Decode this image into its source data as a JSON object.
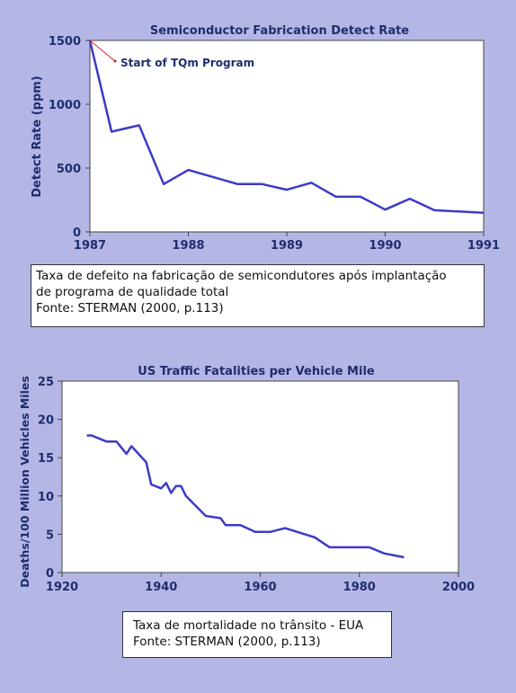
{
  "colors": {
    "background": "#b4b7e6",
    "plot_bg": "#ffffff",
    "line": "#3b3bc8",
    "text": "#1f2d6b",
    "annotation_arrow": "#e02020"
  },
  "caption1": {
    "line1": "Taxa de defeito na fabricação de semicondutores após implantação",
    "line2": "de programa de qualidade total",
    "line3": "Fonte: STERMAN (2000, p.113)"
  },
  "caption2": {
    "line1": "Taxa de mortalidade no trânsito - EUA",
    "line2": "Fonte: STERMAN (2000, p.113)"
  },
  "chart_data": [
    {
      "type": "line",
      "title": "Semiconductor Fabrication Detect Rate",
      "xlabel": "",
      "ylabel": "Detect Rate (ppm)",
      "xlim": [
        1987,
        1991
      ],
      "ylim": [
        0,
        1500
      ],
      "x_ticks": [
        "1987",
        "1988",
        "1989",
        "1990",
        "1991"
      ],
      "y_ticks": [
        "0",
        "500",
        "1000",
        "1500"
      ],
      "grid": false,
      "annotation": {
        "text": "Start of TQm Program",
        "x": 1987,
        "y": 1500
      },
      "series": [
        {
          "x": [
            1987.0,
            1987.22,
            1987.5,
            1987.75,
            1988.0,
            1988.25,
            1988.5,
            1988.75,
            1989.0,
            1989.25,
            1989.5,
            1989.75,
            1990.0,
            1990.25,
            1990.5,
            1990.75,
            1991.0
          ],
          "values": [
            1500,
            785,
            835,
            375,
            485,
            430,
            375,
            375,
            330,
            385,
            275,
            275,
            175,
            260,
            170,
            160,
            150
          ]
        }
      ]
    },
    {
      "type": "line",
      "title": "US Traffic Fatalities per Vehicle Mile",
      "xlabel": "",
      "ylabel": "Deaths/100 Million Vehicles Miles",
      "xlim": [
        1920,
        2000
      ],
      "ylim": [
        0,
        25
      ],
      "x_ticks": [
        "1920",
        "1940",
        "1960",
        "1980",
        "2000"
      ],
      "y_ticks": [
        "0",
        "5",
        "10",
        "15",
        "20",
        "25"
      ],
      "grid": false,
      "series": [
        {
          "x": [
            1925,
            1926,
            1929,
            1931,
            1933,
            1934,
            1937,
            1938,
            1940,
            1941,
            1942,
            1943,
            1944,
            1945,
            1949,
            1952,
            1953,
            1956,
            1959,
            1962,
            1965,
            1971,
            1974,
            1980,
            1982,
            1985,
            1989
          ],
          "values": [
            17.9,
            17.9,
            17.1,
            17.1,
            15.5,
            16.5,
            14.4,
            11.5,
            11.0,
            11.7,
            10.4,
            11.3,
            11.3,
            10.0,
            7.4,
            7.1,
            6.2,
            6.2,
            5.3,
            5.3,
            5.8,
            4.6,
            3.3,
            3.3,
            3.3,
            2.5,
            2.0
          ]
        }
      ]
    }
  ]
}
